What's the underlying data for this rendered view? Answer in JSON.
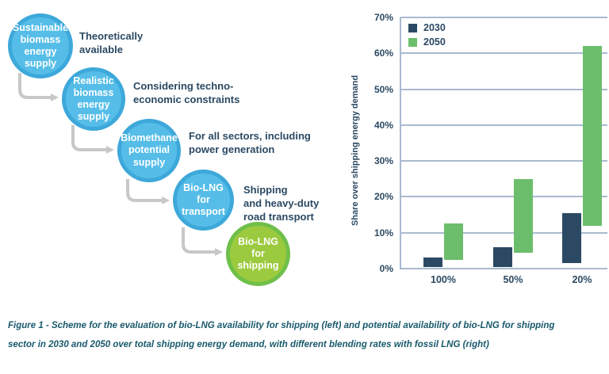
{
  "diagram": {
    "steps": [
      {
        "circle": "Sustainable\nbiomass\nenergy\nsupply",
        "label": "Theoretically\navailable",
        "color": "blue"
      },
      {
        "circle": "Realistic\nbiomass\nenergy\nsupply",
        "label": "Considering techno-\neconomic constraints",
        "color": "blue"
      },
      {
        "circle": "Biomethane\npotential\nsupply",
        "label": "For all sectors, including\npower generation",
        "color": "blue"
      },
      {
        "circle": "Bio-LNG\nfor\ntransport",
        "label": "Shipping\nand heavy-duty\nroad transport",
        "color": "blue"
      },
      {
        "circle": "Bio-LNG\nfor\nshipping",
        "label": "",
        "color": "green"
      }
    ]
  },
  "chart_data": {
    "type": "bar",
    "bar_style": "floating-range-columns",
    "categories": [
      "100%",
      "50%",
      "20%"
    ],
    "series": [
      {
        "name": "2030",
        "color": "#2B4963",
        "ranges_pct": [
          [
            0.5,
            3
          ],
          [
            0.5,
            6
          ],
          [
            1.5,
            15.5
          ]
        ]
      },
      {
        "name": "2050",
        "color": "#6CBE6C",
        "ranges_pct": [
          [
            2.5,
            12.5
          ],
          [
            4.5,
            25
          ],
          [
            12,
            62
          ]
        ]
      }
    ],
    "title": "",
    "xlabel": "",
    "ylabel": "Share over shipping energy demand",
    "ylim": [
      0,
      70
    ],
    "yticks": [
      "70%",
      "60%",
      "50%",
      "40%",
      "30%",
      "20%",
      "10%",
      "0%"
    ],
    "grid": true,
    "legend_position": "top-left"
  },
  "caption": "Figure 1 - Scheme for the evaluation of bio-LNG availability for shipping (left) and potential availability of bio-LNG for shipping\nsector in 2030 and 2050 over total shipping energy demand, with different blending rates with fossil LNG (right)",
  "colors": {
    "circle_blue_fill": "#55BDE8",
    "circle_blue_ring": "#3DA8DA",
    "circle_green_fill": "#9CCA3E",
    "circle_green_ring": "#6FBF4B",
    "bar_2030": "#2B4963",
    "bar_2050": "#6CBE6C",
    "gridline": "#A9BACF",
    "text_navy": "#2B4963",
    "caption_teal": "#19596B",
    "arrow_gray": "#C8C8C8"
  }
}
